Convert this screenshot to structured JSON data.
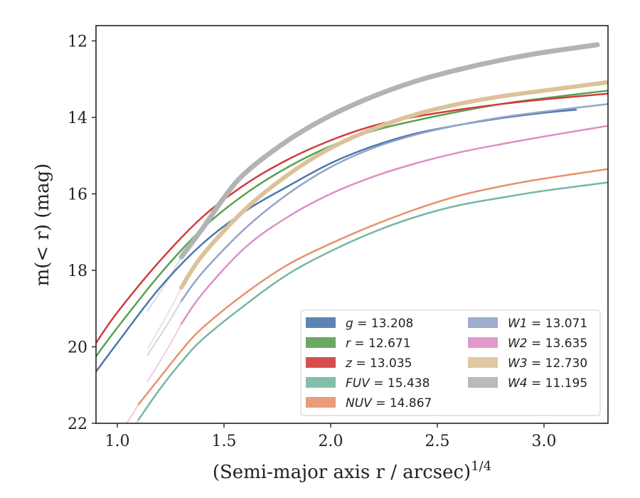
{
  "chart_data": {
    "type": "line",
    "xlabel": "(Semi-major axis r / arcsec)",
    "xlabel_sup": "1/4",
    "ylabel": "m(< r) (mag)",
    "xlim": [
      0.9,
      3.3
    ],
    "ylim": [
      22,
      11.6
    ],
    "y_inverted": true,
    "x_ticks": [
      1.0,
      1.5,
      2.0,
      2.5,
      3.0
    ],
    "x_tick_labels": [
      "1.0",
      "1.5",
      "2.0",
      "2.5",
      "3.0"
    ],
    "y_ticks": [
      12,
      14,
      16,
      18,
      20,
      22
    ],
    "y_tick_labels": [
      "12",
      "14",
      "16",
      "18",
      "20",
      "22"
    ],
    "grid": false,
    "legend_placement": "lower-right",
    "legend_columns": 2,
    "series": [
      {
        "name": "g = 13.208",
        "label_var": "g",
        "label_val": "= 13.208",
        "color": "#4c78a8",
        "width": 2.5,
        "x": [
          0.9,
          1.0,
          1.2,
          1.4,
          1.6,
          1.8,
          2.0,
          2.2,
          2.4,
          2.6,
          2.8,
          3.0,
          3.15
        ],
        "y": [
          20.65,
          19.9,
          18.45,
          17.3,
          16.45,
          15.8,
          15.2,
          14.75,
          14.42,
          14.2,
          14.02,
          13.88,
          13.8
        ]
      },
      {
        "name": "r = 12.671",
        "label_var": "r",
        "label_val": "= 12.671",
        "color": "#59a14f",
        "width": 2.5,
        "x": [
          0.9,
          1.0,
          1.2,
          1.4,
          1.6,
          1.8,
          2.0,
          2.2,
          2.4,
          2.6,
          2.8,
          3.0,
          3.3
        ],
        "y": [
          20.25,
          19.5,
          18.1,
          16.9,
          16.0,
          15.3,
          14.75,
          14.35,
          14.08,
          13.85,
          13.65,
          13.5,
          13.3
        ]
      },
      {
        "name": "z = 13.035",
        "label_var": "z",
        "label_val": "= 13.035",
        "color": "#d03c3c",
        "width": 2.5,
        "x": [
          0.9,
          1.0,
          1.2,
          1.4,
          1.6,
          1.8,
          2.0,
          2.2,
          2.4,
          2.6,
          2.8,
          3.0,
          3.3
        ],
        "y": [
          19.9,
          19.1,
          17.75,
          16.6,
          15.75,
          15.1,
          14.6,
          14.22,
          13.98,
          13.8,
          13.65,
          13.53,
          13.38
        ]
      },
      {
        "name": "FUV = 15.438",
        "label_var": "FUV",
        "label_val": "= 15.438",
        "color": "#76b7a3",
        "width": 2.5,
        "x": [
          1.1,
          1.2,
          1.3,
          1.4,
          1.6,
          1.8,
          2.0,
          2.2,
          2.4,
          2.6,
          2.8,
          3.0,
          3.3
        ],
        "y": [
          21.9,
          21.1,
          20.4,
          19.8,
          18.9,
          18.1,
          17.5,
          17.0,
          16.6,
          16.3,
          16.1,
          15.92,
          15.7
        ]
      },
      {
        "name": "NUV = 14.867",
        "label_var": "NUV",
        "label_val": "= 14.867",
        "color": "#e8906e",
        "width": 2.5,
        "x": [
          1.1,
          1.2,
          1.3,
          1.4,
          1.6,
          1.8,
          2.0,
          2.2,
          2.4,
          2.6,
          2.8,
          3.0,
          3.3
        ],
        "y": [
          21.5,
          20.8,
          20.1,
          19.5,
          18.6,
          17.85,
          17.3,
          16.82,
          16.4,
          16.05,
          15.8,
          15.6,
          15.35
        ]
      },
      {
        "name": "W1 = 13.071",
        "label_var": "W1",
        "label_val": "= 13.071",
        "color": "#93a4c8",
        "width": 2.5,
        "x": [
          1.3,
          1.4,
          1.6,
          1.8,
          2.0,
          2.2,
          2.4,
          2.6,
          2.8,
          3.0,
          3.3
        ],
        "y": [
          18.8,
          18.05,
          16.9,
          16.0,
          15.3,
          14.8,
          14.45,
          14.2,
          14.0,
          13.85,
          13.65
        ]
      },
      {
        "name": "W2 = 13.635",
        "label_var": "W2",
        "label_val": "= 13.635",
        "color": "#dd8fc4",
        "width": 2.5,
        "x": [
          1.3,
          1.4,
          1.6,
          1.8,
          2.0,
          2.2,
          2.4,
          2.6,
          2.8,
          3.0,
          3.3
        ],
        "y": [
          19.4,
          18.6,
          17.4,
          16.6,
          16.0,
          15.55,
          15.2,
          14.92,
          14.7,
          14.5,
          14.22
        ]
      },
      {
        "name": "W3 = 12.730",
        "label_var": "W3",
        "label_val": "= 12.730",
        "color": "#dcc29a",
        "width": 6,
        "x": [
          1.3,
          1.4,
          1.6,
          1.8,
          2.0,
          2.2,
          2.4,
          2.6,
          2.8,
          3.0,
          3.3
        ],
        "y": [
          18.45,
          17.6,
          16.4,
          15.5,
          14.8,
          14.3,
          13.92,
          13.65,
          13.45,
          13.3,
          13.08
        ]
      },
      {
        "name": "W4 = 11.195",
        "label_var": "W4",
        "label_val": "= 11.195",
        "color": "#b3b3b3",
        "width": 7,
        "x": [
          1.3,
          1.4,
          1.5,
          1.6,
          1.8,
          2.0,
          2.2,
          2.4,
          2.6,
          2.8,
          3.0,
          3.25
        ],
        "y": [
          17.65,
          16.9,
          16.1,
          15.45,
          14.6,
          13.95,
          13.45,
          13.05,
          12.75,
          12.5,
          12.3,
          12.1
        ]
      }
    ]
  }
}
